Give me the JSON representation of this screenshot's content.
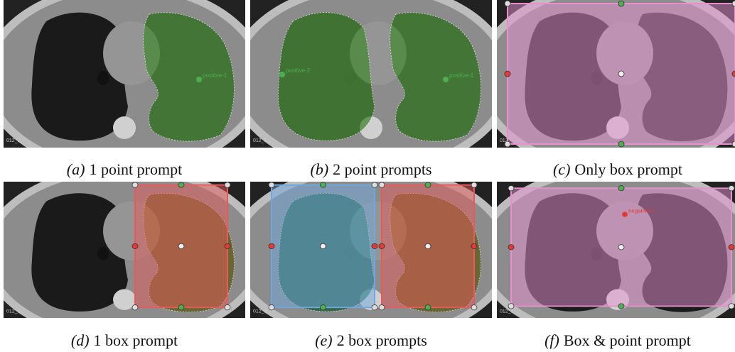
{
  "panels": [
    {
      "label": "(a)",
      "caption": "1 point prompt",
      "slice": "012_1",
      "points": [
        {
          "label": "positive-1"
        }
      ]
    },
    {
      "label": "(b)",
      "caption": "2 point prompts",
      "slice": "012_1",
      "points": [
        {
          "label": "positive-1"
        },
        {
          "label": "positive-2"
        }
      ]
    },
    {
      "label": "(c)",
      "caption": "Only box prompt",
      "slice": "012",
      "points": []
    },
    {
      "label": "(d)",
      "caption": "1 box prompt",
      "slice": "012_1",
      "points": []
    },
    {
      "label": "(e)",
      "caption": "2 box prompts",
      "slice": "012_1",
      "points": []
    },
    {
      "label": "(f)",
      "caption": "Box & point prompt",
      "slice": "012_1",
      "points": [
        {
          "label": "negative-1"
        }
      ]
    }
  ]
}
